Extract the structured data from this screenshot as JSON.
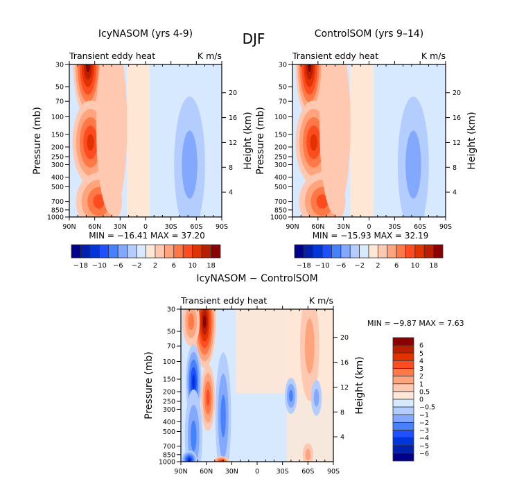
{
  "main_title": "DJF",
  "chart_data": [
    {
      "type": "heatmap",
      "subtype": "filled-contour",
      "title": "IcyNASOM (yrs 4-9)",
      "left_string": "Transient eddy heat",
      "right_string": "K m/s",
      "xlabel": "",
      "ylabel": "Pressure (mb)",
      "ylabel_right": "Height (km)",
      "x_ticks": [
        90,
        60,
        30,
        0,
        -30,
        -60,
        -90
      ],
      "x_tick_labels": [
        "90N",
        "60N",
        "30N",
        "0",
        "30S",
        "60S",
        "90S"
      ],
      "y_ticks": [
        30,
        50,
        70,
        100,
        150,
        200,
        250,
        300,
        400,
        500,
        700,
        850,
        1000
      ],
      "y_right_ticks": [
        4,
        8,
        12,
        16,
        20
      ],
      "xlim": [
        90,
        -90
      ],
      "ylim": [
        1000,
        30
      ],
      "min_label": "MIN =  −16.41   MAX =   37.20",
      "min": -16.41,
      "max": 37.2,
      "levels": [
        -18,
        -14,
        -10,
        -8,
        -6,
        -4,
        -2,
        0,
        2,
        4,
        6,
        8,
        10,
        14,
        18
      ],
      "colorbar_labels": [
        "−18",
        "−10",
        "−6",
        "−2",
        "2",
        "6",
        "10",
        "18"
      ],
      "colorbar_orientation": "horizontal",
      "features": [
        {
          "lat": 68,
          "p": 30,
          "dlat": 14,
          "dp": 1.15,
          "value": 30
        },
        {
          "lat": 65,
          "p": 180,
          "dlat": 18,
          "dp": 0.9,
          "value": 12
        },
        {
          "lat": 57,
          "p": 920,
          "dlat": 18,
          "dp": 0.35,
          "value": 22
        },
        {
          "lat": 55,
          "p": 700,
          "dlat": 24,
          "dp": 0.6,
          "value": 9
        },
        {
          "lat": 40,
          "p": 120,
          "dlat": 15,
          "dp": 2.0,
          "value": 3
        },
        {
          "lat": 30,
          "p": 400,
          "dlat": 8,
          "dp": 2.0,
          "value": 1
        },
        {
          "lat": -52,
          "p": 190,
          "dlat": 8,
          "dp": 0.5,
          "value": -16
        },
        {
          "lat": -52,
          "p": 900,
          "dlat": 9,
          "dp": 0.35,
          "value": -13
        },
        {
          "lat": -52,
          "p": 300,
          "dlat": 15,
          "dp": 1.5,
          "value": -4
        },
        {
          "lat": -75,
          "p": 180,
          "dlat": 8,
          "dp": 0.7,
          "value": 0.8
        }
      ]
    },
    {
      "type": "heatmap",
      "subtype": "filled-contour",
      "title": "ControlSOM (yrs 9–14)",
      "left_string": "Transient eddy heat",
      "right_string": "K m/s",
      "xlabel": "",
      "ylabel": "Pressure (mb)",
      "ylabel_right": "Height (km)",
      "x_ticks": [
        90,
        60,
        30,
        0,
        -30,
        -60,
        -90
      ],
      "x_tick_labels": [
        "90N",
        "60N",
        "30N",
        "0",
        "30S",
        "60S",
        "90S"
      ],
      "y_ticks": [
        30,
        50,
        70,
        100,
        150,
        200,
        250,
        300,
        400,
        500,
        700,
        850,
        1000
      ],
      "y_right_ticks": [
        4,
        8,
        12,
        16,
        20
      ],
      "xlim": [
        90,
        -90
      ],
      "ylim": [
        1000,
        30
      ],
      "min_label": "MIN =  −15.93   MAX =   32.19",
      "min": -15.93,
      "max": 32.19,
      "levels": [
        -18,
        -14,
        -10,
        -8,
        -6,
        -4,
        -2,
        0,
        2,
        4,
        6,
        8,
        10,
        14,
        18
      ],
      "colorbar_labels": [
        "−18",
        "−10",
        "−6",
        "−2",
        "2",
        "6",
        "10",
        "18"
      ],
      "colorbar_orientation": "horizontal",
      "features": [
        {
          "lat": 70,
          "p": 30,
          "dlat": 13,
          "dp": 1.15,
          "value": 28
        },
        {
          "lat": 65,
          "p": 180,
          "dlat": 18,
          "dp": 0.9,
          "value": 11
        },
        {
          "lat": 57,
          "p": 920,
          "dlat": 18,
          "dp": 0.35,
          "value": 20
        },
        {
          "lat": 55,
          "p": 700,
          "dlat": 24,
          "dp": 0.6,
          "value": 9
        },
        {
          "lat": 40,
          "p": 120,
          "dlat": 15,
          "dp": 2.0,
          "value": 3
        },
        {
          "lat": 30,
          "p": 400,
          "dlat": 8,
          "dp": 2.0,
          "value": 1
        },
        {
          "lat": -53,
          "p": 190,
          "dlat": 8,
          "dp": 0.5,
          "value": -15
        },
        {
          "lat": -53,
          "p": 900,
          "dlat": 9,
          "dp": 0.35,
          "value": -13
        },
        {
          "lat": -52,
          "p": 300,
          "dlat": 15,
          "dp": 1.5,
          "value": -4
        },
        {
          "lat": -75,
          "p": 200,
          "dlat": 8,
          "dp": 0.7,
          "value": 0.8
        }
      ]
    },
    {
      "type": "heatmap",
      "subtype": "filled-contour",
      "title": "IcyNASOM − ControlSOM",
      "left_string": "Transient eddy heat",
      "right_string": "K m/s",
      "xlabel": "",
      "ylabel": "Pressure (mb)",
      "ylabel_right": "Height (km)",
      "x_ticks": [
        90,
        60,
        30,
        0,
        -30,
        -60,
        -90
      ],
      "x_tick_labels": [
        "90N",
        "60N",
        "30N",
        "0",
        "30S",
        "60S",
        "90S"
      ],
      "y_ticks": [
        30,
        50,
        70,
        100,
        150,
        200,
        250,
        300,
        400,
        500,
        700,
        850,
        1000
      ],
      "y_right_ticks": [
        4,
        8,
        12,
        16,
        20
      ],
      "xlim": [
        90,
        -90
      ],
      "ylim": [
        1000,
        30
      ],
      "min_label": "MIN =   −9.87   MAX =    7.63",
      "min": -9.87,
      "max": 7.63,
      "levels": [
        -6,
        -5,
        -4,
        -3,
        -2,
        -1,
        -0.5,
        0,
        0.5,
        1,
        2,
        3,
        4,
        5,
        6
      ],
      "colorbar_labels": [
        "6",
        "5",
        "4",
        "3",
        "2",
        "1",
        "0.5",
        "0",
        "−0.5",
        "−1",
        "−2",
        "−3",
        "−4",
        "−5",
        "−6"
      ],
      "colorbar_orientation": "vertical",
      "features": [
        {
          "lat": 62,
          "p": 40,
          "dlat": 10,
          "dp": 1.0,
          "value": 6
        },
        {
          "lat": 58,
          "p": 230,
          "dlat": 5,
          "dp": 0.7,
          "value": 3
        },
        {
          "lat": 78,
          "p": 40,
          "dlat": 7,
          "dp": 0.5,
          "value": 2
        },
        {
          "lat": 75,
          "p": 160,
          "dlat": 6,
          "dp": 0.8,
          "value": -4
        },
        {
          "lat": 75,
          "p": 550,
          "dlat": 7,
          "dp": 1.0,
          "value": -2
        },
        {
          "lat": 80,
          "p": 960,
          "dlat": 6,
          "dp": 0.15,
          "value": -4
        },
        {
          "lat": 40,
          "p": 350,
          "dlat": 6,
          "dp": 1.4,
          "value": -2
        },
        {
          "lat": 42,
          "p": 1000,
          "dlat": 6,
          "dp": 0.06,
          "value": 4
        },
        {
          "lat": -40,
          "p": 220,
          "dlat": 4,
          "dp": 0.35,
          "value": -2
        },
        {
          "lat": -62,
          "p": 70,
          "dlat": 8,
          "dp": 1.2,
          "value": 1
        },
        {
          "lat": -70,
          "p": 230,
          "dlat": 3,
          "dp": 0.35,
          "value": -1
        },
        {
          "lat": -60,
          "p": 850,
          "dlat": 3,
          "dp": 0.2,
          "value": 1
        }
      ]
    }
  ]
}
